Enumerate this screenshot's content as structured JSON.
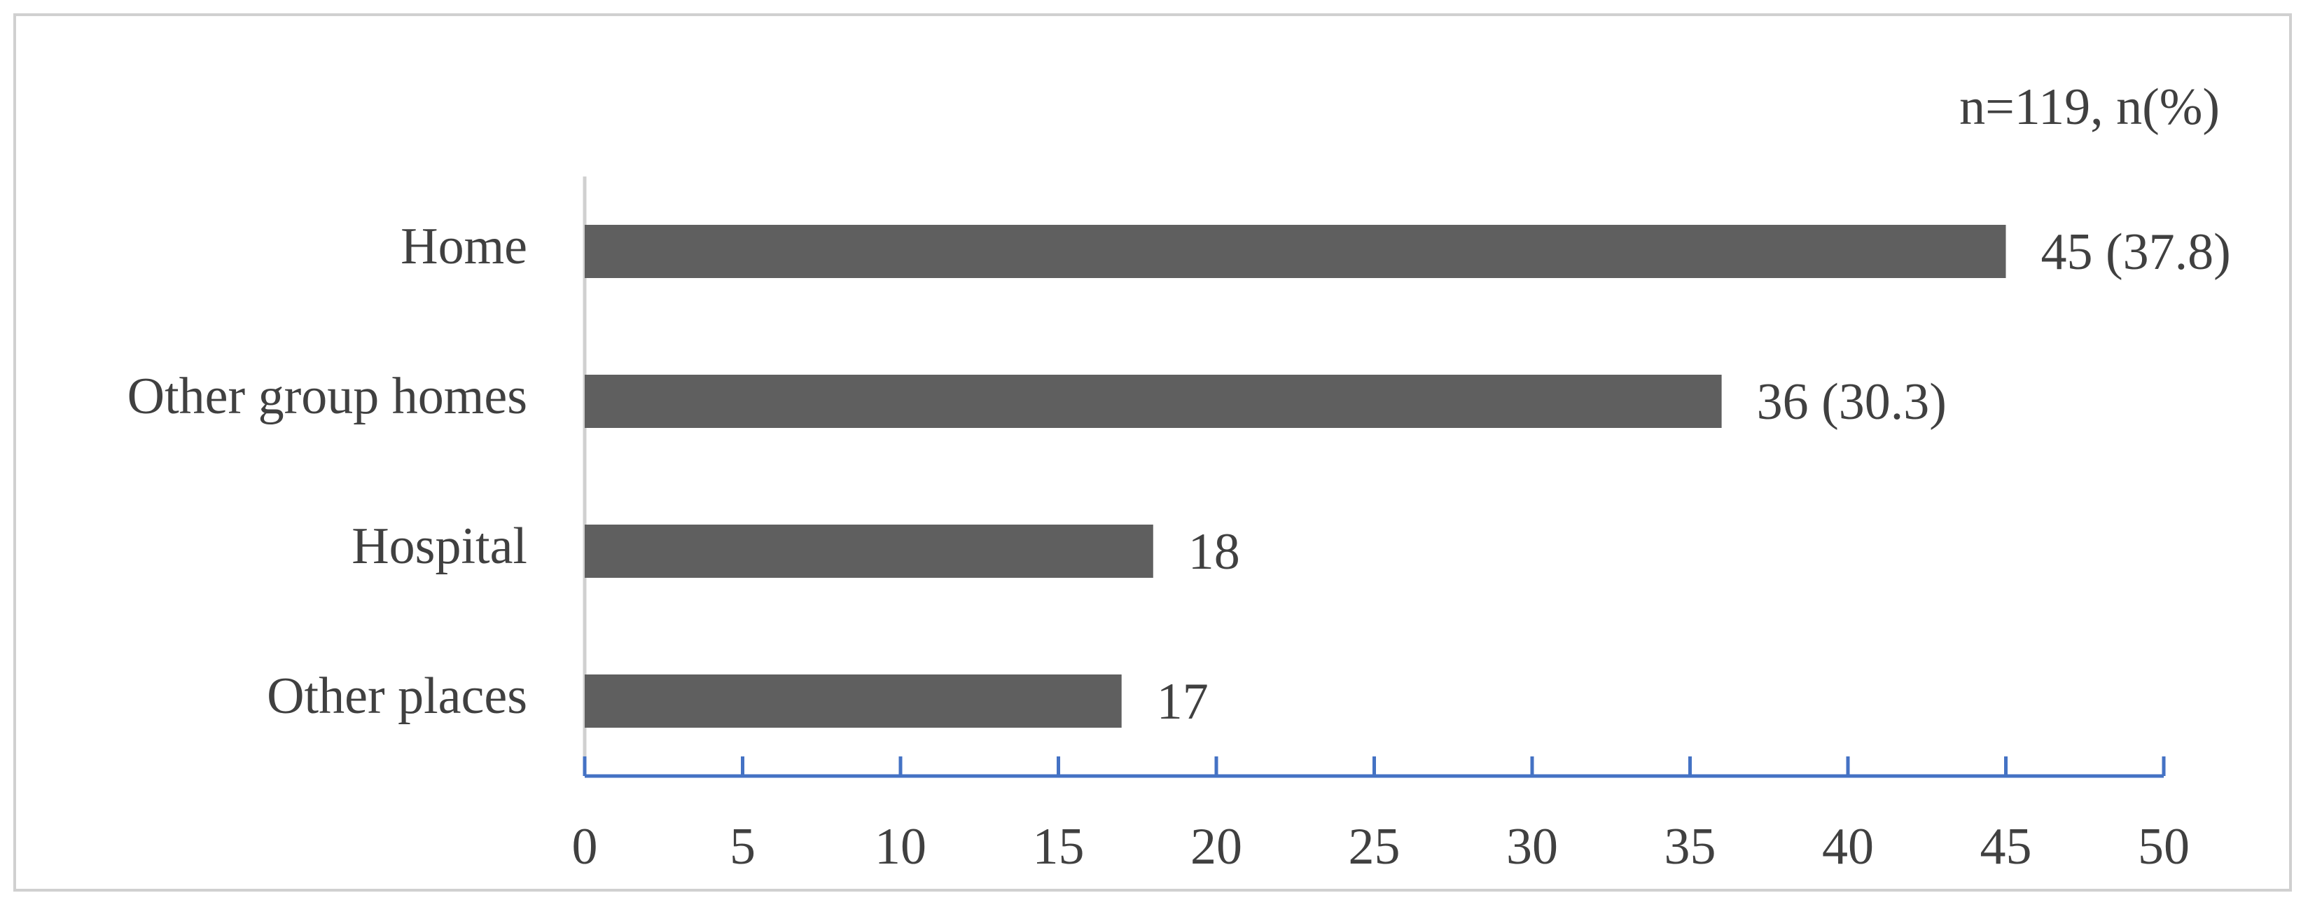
{
  "chart_data": {
    "type": "hbar",
    "annotation": "n=119, n(%)",
    "categories": [
      "Home",
      "Other group homes",
      "Hospital",
      "Other places"
    ],
    "values": [
      45,
      36,
      18,
      17
    ],
    "value_labels": [
      "45 (37.8)",
      "36 (30.3)",
      "18",
      "17"
    ],
    "color": "#5f5f5f",
    "axis_color": "#4472c4",
    "xlim": [
      0,
      50
    ],
    "xticks": [
      0,
      5,
      10,
      15,
      20,
      25,
      30,
      35,
      40,
      45,
      50
    ]
  }
}
